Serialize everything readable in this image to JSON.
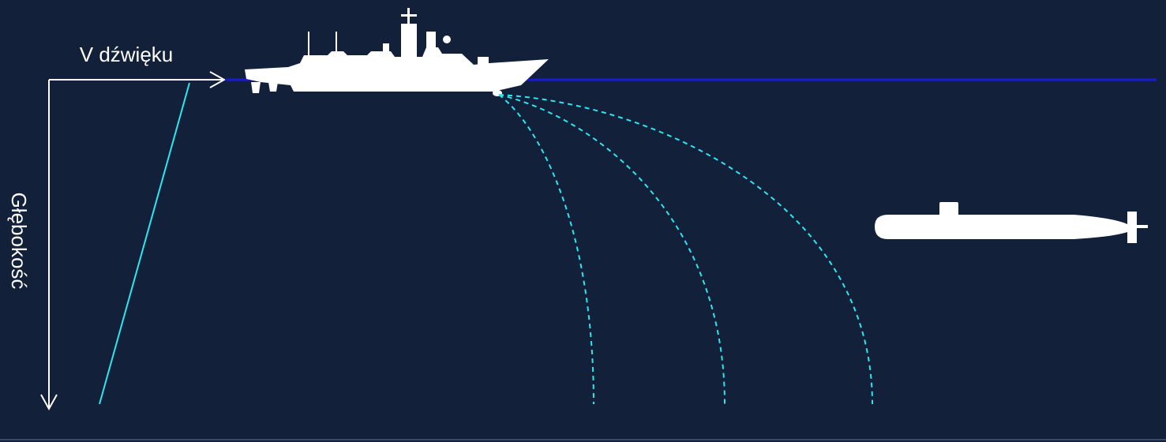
{
  "labels": {
    "x_axis": "V dźwięku",
    "y_axis": "Głębokość"
  }
}
